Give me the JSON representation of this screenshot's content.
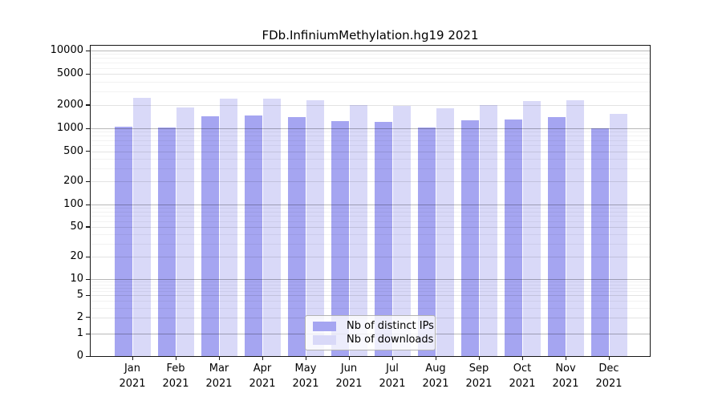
{
  "figure": {
    "title": "FDb.InfiniumMethylation.hg19 2021"
  },
  "chart_data": {
    "type": "bar",
    "title": "FDb.InfiniumMethylation.hg19 2021",
    "categories": [
      "Jan 2021",
      "Feb 2021",
      "Mar 2021",
      "Apr 2021",
      "May 2021",
      "Jun 2021",
      "Jul 2021",
      "Aug 2021",
      "Sep 2021",
      "Oct 2021",
      "Nov 2021",
      "Dec 2021"
    ],
    "series": [
      {
        "name": "Nb of distinct IPs",
        "color": "#a5a5f1",
        "values": [
          1060,
          1030,
          1440,
          1460,
          1380,
          1250,
          1220,
          1030,
          1270,
          1310,
          1390,
          990
        ]
      },
      {
        "name": "Nb of downloads",
        "color": "#d9d9f8",
        "values": [
          2450,
          1870,
          2400,
          2380,
          2300,
          2000,
          1950,
          1800,
          2010,
          2230,
          2320,
          1520
        ]
      }
    ],
    "y_axis": {
      "scale": "symlog",
      "range": [
        0,
        10000
      ],
      "ticks": [
        10000,
        5000,
        2000,
        1000,
        500,
        200,
        100,
        50,
        20,
        10,
        5,
        2,
        1,
        0
      ]
    },
    "x_axis": {
      "tick_label_year": "2021"
    },
    "legend": {
      "position": "lower center",
      "entries": [
        "Nb of distinct IPs",
        "Nb of downloads"
      ]
    },
    "grid": true
  }
}
